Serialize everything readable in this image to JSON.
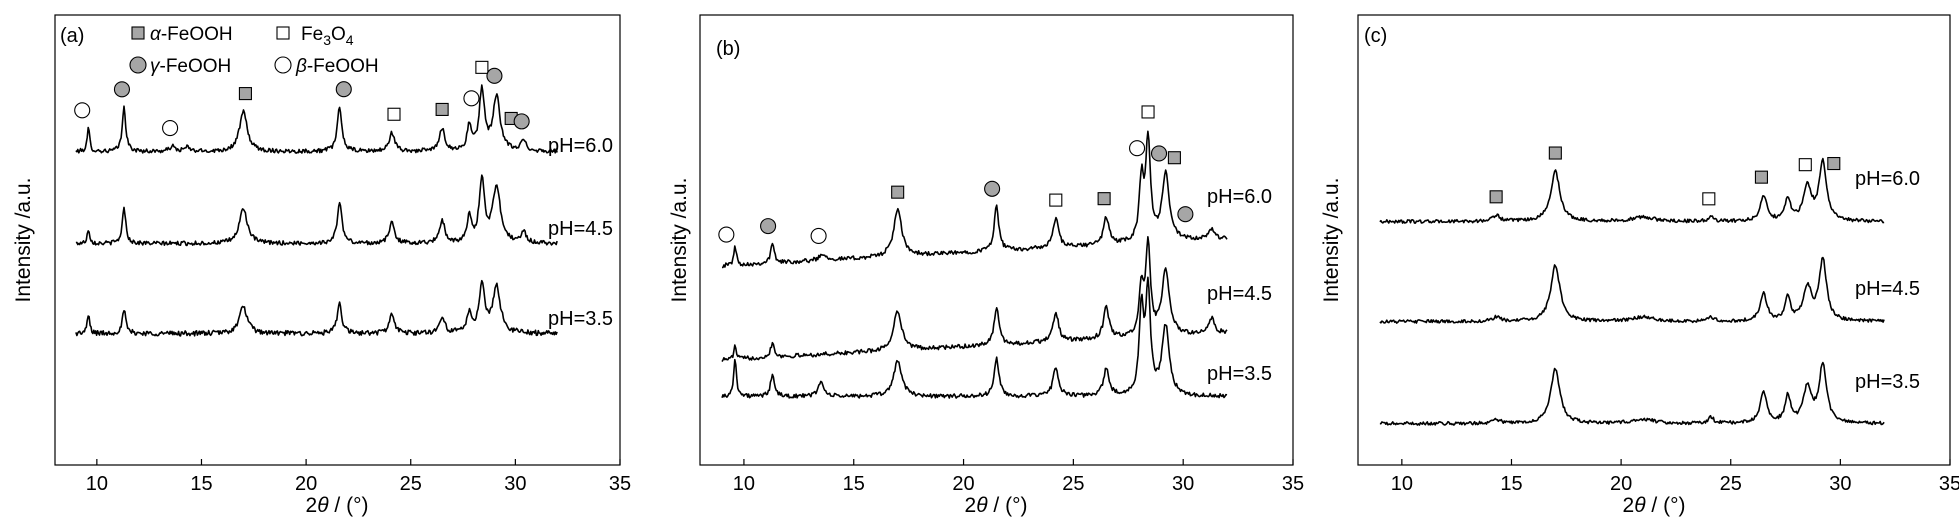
{
  "chart_data": [
    {
      "type": "line",
      "panel_label": "(a)",
      "xlabel_prefix": "2",
      "xlabel_theta": "θ",
      "xlabel_suffix": " / (°)",
      "ylabel": "Intensity /a.u.",
      "xlim": [
        8,
        35
      ],
      "xticks": [
        "10",
        "15",
        "20",
        "25",
        "30",
        "35"
      ],
      "x_range_data": [
        9,
        32
      ],
      "legend": {
        "alpha": {
          "prefix": "α",
          "text": "-FeOOH"
        },
        "gamma": {
          "prefix": "γ",
          "text": "-FeOOH"
        },
        "fe3o4": {
          "base": "Fe",
          "sub1": "3",
          "mid": "O",
          "sub2": "4"
        },
        "beta": {
          "prefix": "β",
          "text": "-FeOOH"
        }
      },
      "series": [
        {
          "name": "pH=6.0",
          "level": 3,
          "baseline": 0.2,
          "slope": 0.0,
          "noise": 0.05,
          "peaks": [
            [
              9.6,
              0.55,
              0.07
            ],
            [
              11.3,
              1.05,
              0.1
            ],
            [
              13.6,
              0.12,
              0.15
            ],
            [
              14.3,
              0.1,
              0.15
            ],
            [
              17.0,
              0.95,
              0.22
            ],
            [
              21.6,
              1.05,
              0.13
            ],
            [
              24.1,
              0.45,
              0.15
            ],
            [
              26.5,
              0.55,
              0.15
            ],
            [
              27.8,
              0.6,
              0.12
            ],
            [
              28.4,
              1.45,
              0.15
            ],
            [
              29.1,
              1.3,
              0.2
            ],
            [
              30.4,
              0.25,
              0.15
            ]
          ],
          "markers": [
            {
              "x": 9.3,
              "type": "beta"
            },
            {
              "x": 11.2,
              "type": "gamma"
            },
            {
              "x": 13.5,
              "type": "beta"
            },
            {
              "x": 17.1,
              "type": "alpha"
            },
            {
              "x": 21.8,
              "type": "gamma"
            },
            {
              "x": 24.2,
              "type": "fe3o4"
            },
            {
              "x": 26.5,
              "type": "alpha"
            },
            {
              "x": 27.9,
              "type": "beta"
            },
            {
              "x": 28.4,
              "type": "fe3o4"
            },
            {
              "x": 29.0,
              "type": "gamma"
            },
            {
              "x": 29.8,
              "type": "alpha"
            },
            {
              "x": 30.3,
              "type": "gamma"
            }
          ]
        },
        {
          "name": "pH=4.5",
          "level": 2,
          "baseline": 0.2,
          "slope": 0.0,
          "noise": 0.05,
          "peaks": [
            [
              9.6,
              0.35,
              0.07
            ],
            [
              11.3,
              0.85,
              0.1
            ],
            [
              17.0,
              0.85,
              0.22
            ],
            [
              21.6,
              1.0,
              0.13
            ],
            [
              24.1,
              0.5,
              0.15
            ],
            [
              26.5,
              0.55,
              0.15
            ],
            [
              27.8,
              0.6,
              0.12
            ],
            [
              28.4,
              1.5,
              0.15
            ],
            [
              29.1,
              1.35,
              0.22
            ],
            [
              30.4,
              0.25,
              0.15
            ]
          ],
          "markers": []
        },
        {
          "name": "pH=3.5",
          "level": 1,
          "baseline": 0.2,
          "slope": 0.0,
          "noise": 0.06,
          "peaks": [
            [
              9.6,
              0.45,
              0.07
            ],
            [
              11.3,
              0.55,
              0.1
            ],
            [
              17.0,
              0.65,
              0.22
            ],
            [
              21.6,
              0.7,
              0.13
            ],
            [
              24.1,
              0.45,
              0.15
            ],
            [
              26.5,
              0.4,
              0.15
            ],
            [
              27.8,
              0.5,
              0.12
            ],
            [
              28.4,
              1.2,
              0.15
            ],
            [
              29.1,
              1.1,
              0.22
            ]
          ],
          "markers": []
        }
      ]
    },
    {
      "type": "line",
      "panel_label": "(b)",
      "xlabel_prefix": "2",
      "xlabel_theta": "θ",
      "xlabel_suffix": " / (°)",
      "ylabel": "Intensity /a.u.",
      "xlim": [
        8,
        35
      ],
      "xticks": [
        "10",
        "15",
        "20",
        "25",
        "30",
        "35"
      ],
      "x_range_data": [
        9,
        32
      ],
      "series": [
        {
          "name": "pH=6.0",
          "level": 3,
          "baseline": 0.05,
          "slope": 0.028,
          "noise": 0.05,
          "peaks": [
            [
              9.6,
              0.45,
              0.07
            ],
            [
              11.3,
              0.45,
              0.1
            ],
            [
              13.6,
              0.15,
              0.2
            ],
            [
              17.0,
              1.1,
              0.22
            ],
            [
              21.5,
              1.05,
              0.13
            ],
            [
              24.2,
              0.7,
              0.15
            ],
            [
              26.5,
              0.65,
              0.15
            ],
            [
              28.1,
              1.4,
              0.12
            ],
            [
              28.4,
              2.4,
              0.13
            ],
            [
              29.2,
              1.6,
              0.2
            ],
            [
              31.3,
              0.25,
              0.15
            ]
          ],
          "markers": [
            {
              "x": 9.2,
              "type": "beta"
            },
            {
              "x": 11.1,
              "type": "gamma"
            },
            {
              "x": 13.4,
              "type": "beta"
            },
            {
              "x": 17.0,
              "type": "alpha"
            },
            {
              "x": 21.3,
              "type": "gamma"
            },
            {
              "x": 24.2,
              "type": "fe3o4"
            },
            {
              "x": 26.4,
              "type": "alpha"
            },
            {
              "x": 27.9,
              "type": "beta"
            },
            {
              "x": 28.4,
              "type": "fe3o4"
            },
            {
              "x": 28.9,
              "type": "gamma"
            },
            {
              "x": 29.6,
              "type": "alpha"
            },
            {
              "x": 30.1,
              "type": "gamma"
            }
          ]
        },
        {
          "name": "pH=4.5",
          "level": 2,
          "baseline": 0.05,
          "slope": 0.028,
          "noise": 0.05,
          "peaks": [
            [
              9.6,
              0.3,
              0.07
            ],
            [
              11.3,
              0.35,
              0.1
            ],
            [
              17.0,
              0.95,
              0.22
            ],
            [
              21.5,
              0.9,
              0.13
            ],
            [
              24.2,
              0.7,
              0.15
            ],
            [
              26.5,
              0.75,
              0.15
            ],
            [
              28.1,
              1.1,
              0.12
            ],
            [
              28.4,
              2.1,
              0.13
            ],
            [
              29.2,
              1.55,
              0.2
            ],
            [
              31.3,
              0.35,
              0.15
            ]
          ],
          "markers": []
        },
        {
          "name": "pH=3.5",
          "level": 1,
          "baseline": 0.2,
          "slope": 0.0,
          "noise": 0.05,
          "peaks": [
            [
              9.6,
              0.95,
              0.07
            ],
            [
              11.3,
              0.55,
              0.1
            ],
            [
              13.5,
              0.35,
              0.15
            ],
            [
              17.0,
              0.85,
              0.22
            ],
            [
              21.5,
              0.9,
              0.13
            ],
            [
              24.2,
              0.7,
              0.15
            ],
            [
              26.5,
              0.65,
              0.15
            ],
            [
              28.1,
              2.0,
              0.12
            ],
            [
              28.4,
              2.45,
              0.13
            ],
            [
              29.2,
              1.65,
              0.2
            ]
          ],
          "markers": []
        }
      ]
    },
    {
      "type": "line",
      "panel_label": "(c)",
      "xlabel_prefix": "2",
      "xlabel_theta": "θ",
      "xlabel_suffix": " / (°)",
      "ylabel": "Intensity /a.u.",
      "xlim": [
        8,
        35
      ],
      "xticks": [
        "10",
        "15",
        "20",
        "25",
        "30",
        "35"
      ],
      "x_range_data": [
        9,
        32
      ],
      "series": [
        {
          "name": "pH=6.0",
          "level": 3,
          "baseline": 0.2,
          "slope": 0.0,
          "noise": 0.04,
          "peaks": [
            [
              14.3,
              0.15,
              0.2
            ],
            [
              17.0,
              1.2,
              0.25
            ],
            [
              21.0,
              0.1,
              0.6
            ],
            [
              24.1,
              0.1,
              0.15
            ],
            [
              26.5,
              0.6,
              0.18
            ],
            [
              27.6,
              0.55,
              0.15
            ],
            [
              28.5,
              0.8,
              0.22
            ],
            [
              29.2,
              1.4,
              0.2
            ]
          ],
          "markers": [
            {
              "x": 14.3,
              "type": "alpha"
            },
            {
              "x": 17.0,
              "type": "alpha"
            },
            {
              "x": 24.0,
              "type": "fe3o4"
            },
            {
              "x": 26.4,
              "type": "alpha"
            },
            {
              "x": 28.4,
              "type": "fe3o4"
            },
            {
              "x": 29.7,
              "type": "alpha"
            }
          ]
        },
        {
          "name": "pH=4.5",
          "level": 2,
          "baseline": 0.2,
          "slope": 0.0,
          "noise": 0.04,
          "peaks": [
            [
              14.3,
              0.1,
              0.2
            ],
            [
              17.0,
              1.35,
              0.25
            ],
            [
              21.0,
              0.1,
              0.6
            ],
            [
              24.1,
              0.1,
              0.15
            ],
            [
              26.5,
              0.65,
              0.18
            ],
            [
              27.6,
              0.55,
              0.15
            ],
            [
              28.5,
              0.8,
              0.22
            ],
            [
              29.2,
              1.45,
              0.2
            ]
          ],
          "markers": []
        },
        {
          "name": "pH=3.5",
          "level": 1,
          "baseline": 0.2,
          "slope": 0.0,
          "noise": 0.04,
          "peaks": [
            [
              14.3,
              0.1,
              0.2
            ],
            [
              17.0,
              1.3,
              0.25
            ],
            [
              21.0,
              0.1,
              0.6
            ],
            [
              24.1,
              0.15,
              0.15
            ],
            [
              26.5,
              0.75,
              0.18
            ],
            [
              27.6,
              0.65,
              0.15
            ],
            [
              28.5,
              0.85,
              0.22
            ],
            [
              29.2,
              1.4,
              0.2
            ]
          ],
          "markers": []
        }
      ]
    }
  ]
}
